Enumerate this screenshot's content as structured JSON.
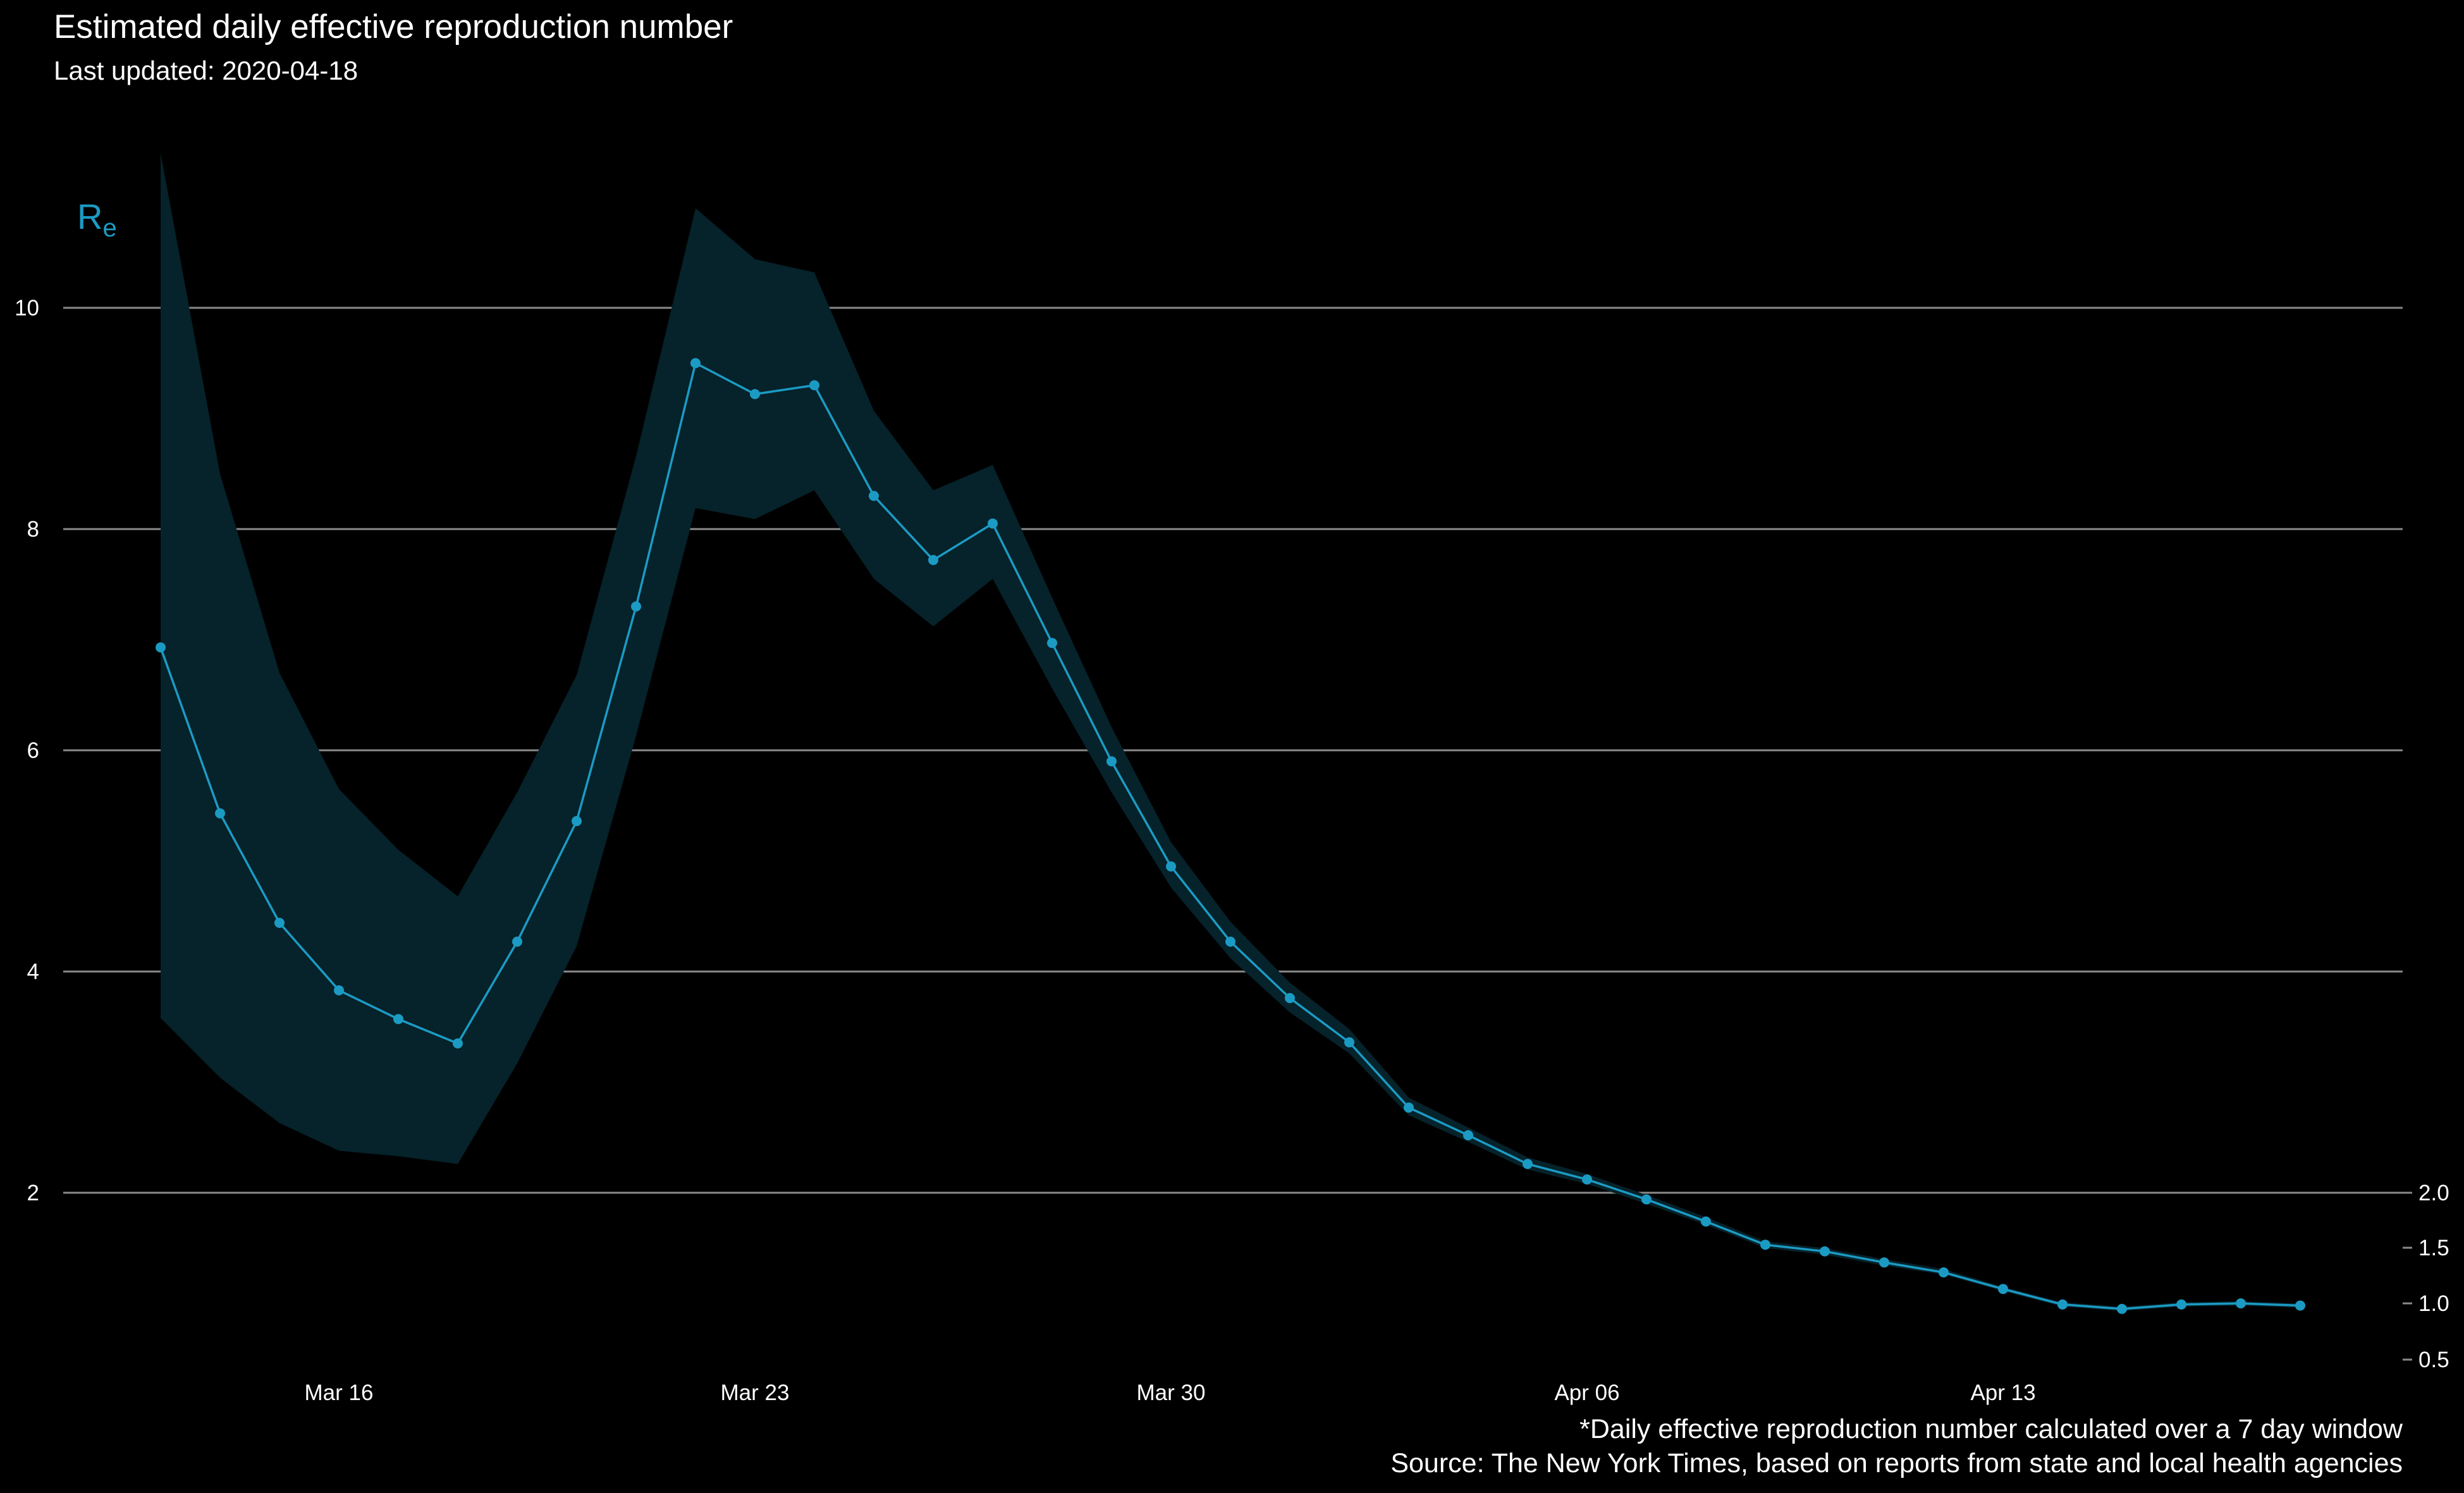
{
  "title": "Estimated daily effective reproduction number",
  "subtitle": "Last updated: 2020-04-18",
  "caption": [
    "*Daily effective reproduction number calculated over a 7 day window",
    "Source: The New York Times, based on reports from state and local health agencies"
  ],
  "colors": {
    "line": "#1b9bc4",
    "band": "#06222a",
    "grid": "#8a8a8a",
    "background": "#000000"
  },
  "chart_data": {
    "type": "line",
    "y_label_main": "R",
    "y_label_sub": "e",
    "x": [
      "2020-03-13",
      "2020-03-14",
      "2020-03-15",
      "2020-03-16",
      "2020-03-17",
      "2020-03-18",
      "2020-03-19",
      "2020-03-20",
      "2020-03-21",
      "2020-03-22",
      "2020-03-23",
      "2020-03-24",
      "2020-03-25",
      "2020-03-26",
      "2020-03-27",
      "2020-03-28",
      "2020-03-29",
      "2020-03-30",
      "2020-03-31",
      "2020-04-01",
      "2020-04-02",
      "2020-04-03",
      "2020-04-04",
      "2020-04-05",
      "2020-04-06",
      "2020-04-07",
      "2020-04-08",
      "2020-04-09",
      "2020-04-10",
      "2020-04-11",
      "2020-04-12",
      "2020-04-13",
      "2020-04-14",
      "2020-04-15",
      "2020-04-16",
      "2020-04-17",
      "2020-04-18"
    ],
    "series": [
      {
        "values": [
          6.93,
          5.43,
          4.44,
          3.83,
          3.57,
          3.35,
          4.27,
          5.36,
          7.3,
          9.5,
          9.22,
          9.3,
          8.3,
          7.72,
          8.05,
          6.97,
          5.9,
          4.95,
          4.27,
          3.76,
          3.36,
          2.77,
          2.52,
          2.26,
          2.12,
          1.94,
          1.74,
          1.53,
          1.47,
          1.37,
          1.28,
          1.13,
          0.99,
          0.95,
          0.99,
          1.0,
          0.98
        ],
        "lower": [
          3.58,
          3.04,
          2.63,
          2.38,
          2.33,
          2.26,
          3.17,
          4.23,
          6.13,
          8.19,
          8.09,
          8.35,
          7.55,
          7.12,
          7.55,
          6.56,
          5.62,
          4.76,
          4.12,
          3.63,
          3.26,
          2.7,
          2.46,
          2.21,
          2.08,
          1.9,
          1.71,
          1.5,
          1.44,
          1.34,
          1.26,
          1.11,
          0.97,
          0.93,
          0.97,
          0.98,
          0.96
        ],
        "upper": [
          11.4,
          8.5,
          6.7,
          5.65,
          5.1,
          4.68,
          5.62,
          6.68,
          8.66,
          10.9,
          10.44,
          10.32,
          9.07,
          8.35,
          8.58,
          7.38,
          6.21,
          5.17,
          4.45,
          3.9,
          3.48,
          2.86,
          2.59,
          2.32,
          2.17,
          1.98,
          1.78,
          1.56,
          1.5,
          1.4,
          1.31,
          1.15,
          1.01,
          0.97,
          1.01,
          1.02,
          1.0
        ]
      }
    ],
    "x_ticks": [
      {
        "date": "2020-03-16",
        "label": "Mar 16"
      },
      {
        "date": "2020-03-23",
        "label": "Mar 23"
      },
      {
        "date": "2020-03-30",
        "label": "Mar 30"
      },
      {
        "date": "2020-04-06",
        "label": "Apr 06"
      },
      {
        "date": "2020-04-13",
        "label": "Apr 13"
      }
    ],
    "y_ticks_left": [
      {
        "value": 2,
        "label": "2"
      },
      {
        "value": 4,
        "label": "4"
      },
      {
        "value": 6,
        "label": "6"
      },
      {
        "value": 8,
        "label": "8"
      },
      {
        "value": 10,
        "label": "10"
      }
    ],
    "y_ticks_right": [
      {
        "value": 0.5,
        "label": "0.5"
      },
      {
        "value": 1.0,
        "label": "1.0"
      },
      {
        "value": 1.5,
        "label": "1.5"
      },
      {
        "value": 2.0,
        "label": "2.0"
      }
    ],
    "y_scale": "piecewise-linear (0.5–2 expanded, 2–10 compressed)",
    "grid": "horizontal major lines",
    "legend": "none"
  }
}
